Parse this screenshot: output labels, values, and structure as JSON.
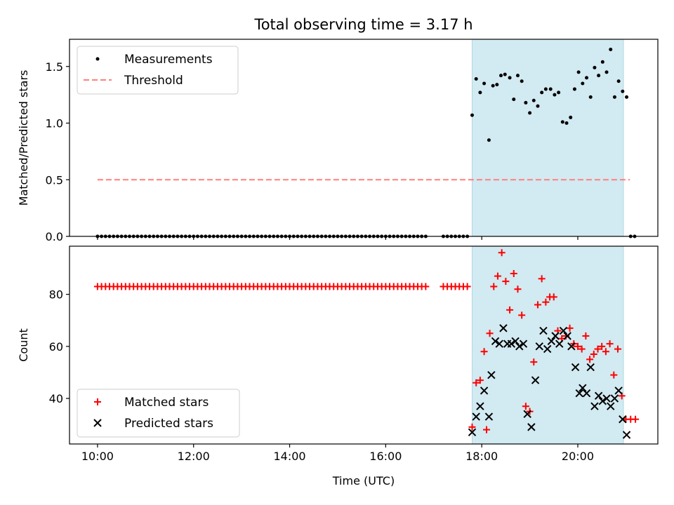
{
  "chart_data": [
    {
      "type": "scatter",
      "title": "Total observing time = 3.17 h",
      "xlabel": "",
      "ylabel": "Matched/Predicted stars",
      "xlim": [
        "09:25",
        "21:40"
      ],
      "ylim": [
        0,
        1.74
      ],
      "x_ticks": [
        "10:00",
        "12:00",
        "14:00",
        "16:00",
        "18:00",
        "20:00"
      ],
      "y_ticks": [
        "0.0",
        "0.5",
        "1.0",
        "1.5"
      ],
      "legend": "upper-left",
      "shaded_span": {
        "x": [
          "17:48",
          "20:57"
        ],
        "color": "#add8e6"
      },
      "series": [
        {
          "name": "Measurements",
          "kind": "scatter",
          "color": "#000000",
          "x_zero_range": [
            [
              "10:00",
              "16:54",
              5
            ],
            [
              "17:12",
              "17:42",
              5
            ],
            [
              "21:06",
              "21:12",
              5
            ]
          ],
          "points": [
            [
              "17:48",
              1.07
            ],
            [
              "17:53",
              1.39
            ],
            [
              "17:58",
              1.27
            ],
            [
              "18:03",
              1.35
            ],
            [
              "18:09",
              0.85
            ],
            [
              "18:14",
              1.33
            ],
            [
              "18:19",
              1.34
            ],
            [
              "18:24",
              1.42
            ],
            [
              "18:29",
              1.43
            ],
            [
              "18:35",
              1.4
            ],
            [
              "18:40",
              1.21
            ],
            [
              "18:45",
              1.42
            ],
            [
              "18:50",
              1.37
            ],
            [
              "18:55",
              1.18
            ],
            [
              "19:00",
              1.09
            ],
            [
              "19:05",
              1.2
            ],
            [
              "19:10",
              1.15
            ],
            [
              "19:15",
              1.27
            ],
            [
              "19:20",
              1.3
            ],
            [
              "19:26",
              1.3
            ],
            [
              "19:31",
              1.25
            ],
            [
              "19:36",
              1.27
            ],
            [
              "19:41",
              1.01
            ],
            [
              "19:46",
              1.0
            ],
            [
              "19:51",
              1.05
            ],
            [
              "19:56",
              1.3
            ],
            [
              "20:01",
              1.45
            ],
            [
              "20:06",
              1.35
            ],
            [
              "20:11",
              1.4
            ],
            [
              "20:16",
              1.23
            ],
            [
              "20:21",
              1.49
            ],
            [
              "20:26",
              1.42
            ],
            [
              "20:31",
              1.54
            ],
            [
              "20:36",
              1.45
            ],
            [
              "20:41",
              1.65
            ],
            [
              "20:46",
              1.23
            ],
            [
              "20:51",
              1.37
            ],
            [
              "20:56",
              1.28
            ],
            [
              "21:01",
              1.23
            ]
          ]
        },
        {
          "name": "Threshold",
          "kind": "line",
          "color": "#ff7f7f",
          "dash": "dashed",
          "points": [
            [
              "10:00",
              0.5
            ],
            [
              "21:05",
              0.5
            ]
          ]
        }
      ]
    },
    {
      "type": "scatter",
      "title": "",
      "xlabel": "Time (UTC)",
      "ylabel": "Count",
      "xlim": [
        "09:25",
        "21:40"
      ],
      "ylim": [
        22.5,
        98.5
      ],
      "x_ticks": [
        "10:00",
        "12:00",
        "14:00",
        "16:00",
        "18:00",
        "20:00"
      ],
      "y_ticks": [
        "40",
        "60",
        "80"
      ],
      "legend": "lower-left",
      "shaded_span": {
        "x": [
          "17:48",
          "20:57"
        ],
        "color": "#add8e6"
      },
      "series": [
        {
          "name": "Matched stars",
          "kind": "scatter",
          "marker": "plus",
          "color": "#ff0000",
          "x_const_range": [
            [
              "10:00",
              "16:54",
              5,
              83
            ],
            [
              "17:12",
              "17:42",
              5,
              83
            ]
          ],
          "points": [
            [
              "17:48",
              29
            ],
            [
              "17:53",
              46
            ],
            [
              "17:58",
              47
            ],
            [
              "18:03",
              58
            ],
            [
              "18:06",
              28
            ],
            [
              "18:10",
              65
            ],
            [
              "18:15",
              83
            ],
            [
              "18:20",
              87
            ],
            [
              "18:25",
              96
            ],
            [
              "18:30",
              85
            ],
            [
              "18:35",
              74
            ],
            [
              "18:40",
              88
            ],
            [
              "18:45",
              82
            ],
            [
              "18:50",
              72
            ],
            [
              "18:55",
              37
            ],
            [
              "19:00",
              35
            ],
            [
              "19:05",
              54
            ],
            [
              "19:10",
              76
            ],
            [
              "19:15",
              86
            ],
            [
              "19:20",
              77
            ],
            [
              "19:25",
              79
            ],
            [
              "19:30",
              79
            ],
            [
              "19:35",
              66
            ],
            [
              "19:40",
              63
            ],
            [
              "19:45",
              64
            ],
            [
              "19:50",
              67
            ],
            [
              "19:55",
              61
            ],
            [
              "20:00",
              60
            ],
            [
              "20:05",
              59
            ],
            [
              "20:10",
              64
            ],
            [
              "20:15",
              55
            ],
            [
              "20:20",
              57
            ],
            [
              "20:25",
              59
            ],
            [
              "20:30",
              60
            ],
            [
              "20:35",
              58
            ],
            [
              "20:40",
              61
            ],
            [
              "20:45",
              49
            ],
            [
              "20:50",
              59
            ],
            [
              "20:55",
              41
            ],
            [
              "21:00",
              32
            ],
            [
              "21:06",
              32
            ],
            [
              "21:12",
              32
            ]
          ]
        },
        {
          "name": "Predicted stars",
          "kind": "scatter",
          "marker": "x",
          "color": "#000000",
          "points": [
            [
              "17:48",
              27
            ],
            [
              "17:53",
              33
            ],
            [
              "17:58",
              37
            ],
            [
              "18:03",
              43
            ],
            [
              "18:09",
              33
            ],
            [
              "18:12",
              49
            ],
            [
              "18:17",
              62
            ],
            [
              "18:22",
              61
            ],
            [
              "18:27",
              67
            ],
            [
              "18:32",
              61
            ],
            [
              "18:37",
              61
            ],
            [
              "18:42",
              62
            ],
            [
              "18:47",
              60
            ],
            [
              "18:52",
              61
            ],
            [
              "18:57",
              34
            ],
            [
              "19:02",
              29
            ],
            [
              "19:07",
              47
            ],
            [
              "19:12",
              60
            ],
            [
              "19:17",
              66
            ],
            [
              "19:22",
              59
            ],
            [
              "19:27",
              62
            ],
            [
              "19:32",
              64
            ],
            [
              "19:37",
              61
            ],
            [
              "19:42",
              66
            ],
            [
              "19:47",
              64
            ],
            [
              "19:52",
              60
            ],
            [
              "19:57",
              52
            ],
            [
              "20:02",
              42
            ],
            [
              "20:06",
              44
            ],
            [
              "20:11",
              42
            ],
            [
              "20:16",
              52
            ],
            [
              "20:21",
              37
            ],
            [
              "20:26",
              41
            ],
            [
              "20:31",
              39
            ],
            [
              "20:36",
              40
            ],
            [
              "20:41",
              37
            ],
            [
              "20:46",
              40
            ],
            [
              "20:51",
              43
            ],
            [
              "20:56",
              32
            ],
            [
              "21:01",
              26
            ]
          ]
        }
      ]
    }
  ]
}
